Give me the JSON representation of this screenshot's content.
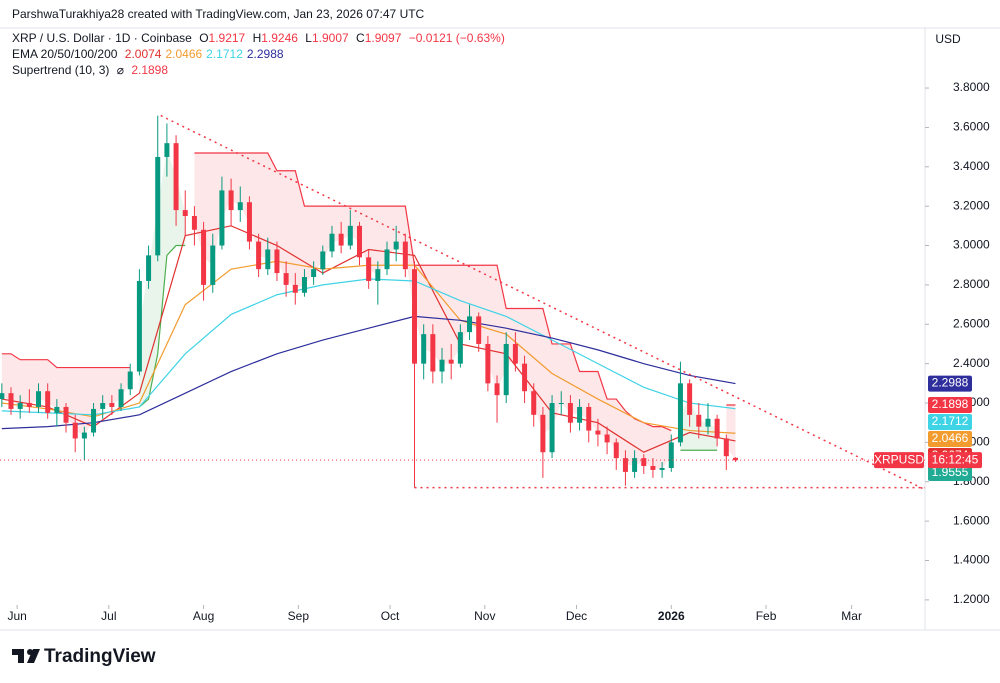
{
  "header": {
    "attribution": "ParshwaTurakhiya28 created with TradingView.com, Jan 23, 2026 07:47 UTC",
    "symbol": "XRP / U.S. Dollar · 1D · Coinbase",
    "ohlc_letters": [
      "O",
      "H",
      "L",
      "C"
    ],
    "change": "−0.0121 (−0.63%)"
  },
  "currency": "USD",
  "logo": "TradingView",
  "chart_data": {
    "type": "candlestick",
    "up_color": "#089981",
    "down_color": "#f23645",
    "xlim": [
      -5.6,
      297
    ],
    "ylim": [
      1.174,
      4.105
    ],
    "xticks": [
      {
        "value": 0,
        "label": "Jun"
      },
      {
        "value": 30,
        "label": "Jul"
      },
      {
        "value": 61,
        "label": "Aug"
      },
      {
        "value": 92,
        "label": "Sep"
      },
      {
        "value": 122,
        "label": "Oct"
      },
      {
        "value": 153,
        "label": "Nov"
      },
      {
        "value": 183,
        "label": "Dec"
      },
      {
        "value": 214,
        "label": "2026"
      },
      {
        "value": 245,
        "label": "Feb"
      },
      {
        "value": 273,
        "label": "Mar"
      }
    ],
    "yticks": [
      {
        "value": 1.2,
        "label": "1.2000"
      },
      {
        "value": 1.4,
        "label": "1.4000"
      },
      {
        "value": 1.6,
        "label": "1.6000"
      },
      {
        "value": 1.8,
        "label": "1.8000"
      },
      {
        "value": 2.0,
        "label": "2.0000"
      },
      {
        "value": 2.2,
        "label": "2.2000"
      },
      {
        "value": 2.4,
        "label": "2.4000"
      },
      {
        "value": 2.6,
        "label": "2.6000"
      },
      {
        "value": 2.8,
        "label": "2.8000"
      },
      {
        "value": 3.0,
        "label": "3.0000"
      },
      {
        "value": 3.2,
        "label": "3.2000"
      },
      {
        "value": 3.4,
        "label": "3.4000"
      },
      {
        "value": 3.6,
        "label": "3.6000"
      },
      {
        "value": 3.8,
        "label": "3.8000"
      }
    ],
    "x": [
      -5,
      -2,
      1,
      4,
      7,
      10,
      13,
      16,
      19,
      22,
      25,
      28,
      31,
      34,
      37,
      40,
      43,
      46,
      49,
      52,
      55,
      58,
      61,
      64,
      67,
      70,
      73,
      76,
      79,
      82,
      85,
      88,
      91,
      94,
      97,
      100,
      103,
      106,
      109,
      112,
      115,
      118,
      121,
      124,
      127,
      130,
      133,
      136,
      139,
      142,
      145,
      148,
      151,
      154,
      157,
      160,
      163,
      166,
      169,
      172,
      175,
      178,
      181,
      184,
      187,
      190,
      193,
      196,
      199,
      202,
      205,
      208,
      211,
      214,
      217,
      220,
      223,
      226,
      229,
      232,
      235
    ],
    "open": [
      2.22,
      2.25,
      2.17,
      2.2,
      2.18,
      2.26,
      2.15,
      2.18,
      2.1,
      2.02,
      2.05,
      2.17,
      2.2,
      2.18,
      2.27,
      2.36,
      2.82,
      2.95,
      3.45,
      3.52,
      3.18,
      3.15,
      3.08,
      2.8,
      3.0,
      3.28,
      3.18,
      3.22,
      3.02,
      2.88,
      2.98,
      2.86,
      2.8,
      2.76,
      2.84,
      2.88,
      2.97,
      3.06,
      3.0,
      3.1,
      2.94,
      2.82,
      2.88,
      2.98,
      3.02,
      2.88,
      2.4,
      2.55,
      2.36,
      2.42,
      2.4,
      2.56,
      2.64,
      2.5,
      2.3,
      2.24,
      2.5,
      2.4,
      2.26,
      2.14,
      1.95,
      2.2,
      2.2,
      2.1,
      2.18,
      2.06,
      2.04,
      2.0,
      1.92,
      1.85,
      1.92,
      1.88,
      1.86,
      1.87,
      2.0,
      2.3,
      2.14,
      2.08,
      2.12,
      2.02,
      1.9217
    ],
    "high": [
      2.3,
      2.28,
      2.24,
      2.27,
      2.3,
      2.3,
      2.22,
      2.2,
      2.14,
      2.08,
      2.2,
      2.24,
      2.24,
      2.3,
      2.4,
      2.88,
      3.0,
      3.66,
      3.62,
      3.56,
      3.28,
      3.2,
      3.12,
      3.06,
      3.35,
      3.34,
      3.3,
      3.25,
      3.06,
      3.04,
      3.02,
      2.92,
      2.86,
      2.88,
      2.92,
      3.0,
      3.1,
      3.12,
      3.18,
      3.12,
      2.98,
      2.92,
      3.02,
      3.1,
      3.06,
      2.92,
      2.6,
      2.6,
      2.48,
      2.5,
      2.6,
      2.7,
      2.66,
      2.54,
      2.34,
      2.56,
      2.56,
      2.44,
      2.3,
      2.18,
      2.24,
      2.26,
      2.24,
      2.22,
      2.2,
      2.12,
      2.08,
      2.02,
      1.96,
      1.96,
      1.94,
      1.92,
      1.9,
      2.04,
      2.41,
      2.32,
      2.2,
      2.2,
      2.14,
      2.04,
      1.9246
    ],
    "low": [
      2.18,
      2.14,
      2.12,
      2.15,
      2.15,
      2.12,
      2.08,
      2.05,
      1.95,
      1.91,
      2.03,
      2.12,
      2.14,
      2.16,
      2.24,
      2.34,
      2.78,
      2.92,
      3.35,
      3.1,
      3.05,
      3.0,
      2.72,
      2.76,
      2.98,
      3.1,
      3.12,
      2.98,
      2.84,
      2.85,
      2.82,
      2.74,
      2.7,
      2.74,
      2.8,
      2.85,
      2.94,
      2.96,
      2.98,
      2.9,
      2.78,
      2.7,
      2.85,
      2.92,
      2.84,
      1.77,
      2.32,
      2.3,
      2.3,
      2.32,
      2.38,
      2.52,
      2.46,
      2.26,
      2.1,
      2.2,
      2.36,
      2.2,
      2.08,
      1.82,
      1.92,
      2.14,
      2.05,
      2.06,
      2.0,
      1.98,
      1.94,
      1.86,
      1.78,
      1.82,
      1.84,
      1.82,
      1.82,
      1.85,
      1.98,
      2.08,
      2.02,
      2.04,
      1.98,
      1.86,
      1.9007
    ],
    "close": [
      2.25,
      2.17,
      2.2,
      2.18,
      2.26,
      2.15,
      2.18,
      2.1,
      2.02,
      2.05,
      2.17,
      2.2,
      2.18,
      2.27,
      2.36,
      2.82,
      2.95,
      3.45,
      3.52,
      3.18,
      3.15,
      3.08,
      2.8,
      3.0,
      3.28,
      3.18,
      3.22,
      3.02,
      2.88,
      2.98,
      2.86,
      2.8,
      2.76,
      2.84,
      2.88,
      2.97,
      3.06,
      3.0,
      3.1,
      2.94,
      2.82,
      2.88,
      2.98,
      3.02,
      2.88,
      2.4,
      2.55,
      2.36,
      2.42,
      2.4,
      2.56,
      2.64,
      2.5,
      2.3,
      2.24,
      2.5,
      2.4,
      2.26,
      2.14,
      1.95,
      2.2,
      2.2,
      2.1,
      2.18,
      2.06,
      2.04,
      2.0,
      1.92,
      1.85,
      1.92,
      1.88,
      1.86,
      1.87,
      2.0,
      2.3,
      2.14,
      2.08,
      2.12,
      2.02,
      1.93,
      1.9097
    ],
    "ema": {
      "label": "EMA 20/50/100/200",
      "lines": [
        {
          "color": "#e0312f",
          "x": [
            -5,
            10,
            25,
            40,
            55,
            70,
            85,
            100,
            115,
            130,
            145,
            160,
            175,
            190,
            205,
            220,
            235
          ],
          "values": [
            2.22,
            2.18,
            2.08,
            2.25,
            3.05,
            3.1,
            3.0,
            2.86,
            2.98,
            2.95,
            2.5,
            2.45,
            2.15,
            2.1,
            1.95,
            2.05,
            2.0074
          ],
          "last": 2.0074
        },
        {
          "color": "#f29b2e",
          "x": [
            -5,
            10,
            25,
            40,
            55,
            70,
            85,
            100,
            115,
            130,
            145,
            160,
            175,
            190,
            205,
            220,
            235
          ],
          "values": [
            2.2,
            2.17,
            2.13,
            2.2,
            2.7,
            2.88,
            2.92,
            2.88,
            2.9,
            2.9,
            2.62,
            2.55,
            2.35,
            2.22,
            2.1,
            2.06,
            2.0466
          ],
          "last": 2.0466
        },
        {
          "color": "#3fd3e6",
          "x": [
            -5,
            10,
            25,
            40,
            55,
            70,
            85,
            100,
            115,
            130,
            145,
            160,
            175,
            190,
            205,
            220,
            235
          ],
          "values": [
            2.16,
            2.15,
            2.14,
            2.18,
            2.45,
            2.65,
            2.75,
            2.8,
            2.83,
            2.82,
            2.72,
            2.64,
            2.52,
            2.4,
            2.28,
            2.2,
            2.1712
          ],
          "last": 2.1712
        },
        {
          "color": "#2e2e9c",
          "x": [
            -5,
            10,
            25,
            40,
            55,
            70,
            85,
            100,
            115,
            130,
            145,
            160,
            175,
            190,
            205,
            220,
            235
          ],
          "values": [
            2.07,
            2.08,
            2.1,
            2.14,
            2.25,
            2.36,
            2.45,
            2.52,
            2.58,
            2.64,
            2.62,
            2.58,
            2.53,
            2.47,
            2.4,
            2.34,
            2.2988
          ],
          "last": 2.2988
        }
      ]
    },
    "supertrend": {
      "label": "Supertrend (10, 3)",
      "symbol": "⌀",
      "last": 2.1898,
      "up_color": "#4caf50",
      "down_color": "#f23645",
      "down": [
        2.45,
        2.45,
        2.42,
        2.42,
        2.42,
        2.42,
        2.38,
        2.38,
        2.38,
        2.38,
        2.38,
        2.38,
        2.38,
        2.38,
        2.38,
        null,
        null,
        null,
        null,
        null,
        null,
        3.47,
        3.47,
        3.47,
        3.47,
        3.47,
        3.47,
        3.47,
        3.47,
        3.47,
        3.38,
        3.38,
        3.38,
        3.2,
        3.2,
        3.2,
        3.2,
        3.2,
        3.2,
        3.2,
        3.2,
        3.2,
        3.2,
        3.2,
        3.2,
        2.9,
        2.9,
        2.9,
        2.9,
        2.9,
        2.9,
        2.9,
        2.9,
        2.9,
        2.9,
        2.68,
        2.68,
        2.68,
        2.68,
        2.68,
        2.5,
        2.5,
        2.5,
        2.36,
        2.36,
        2.36,
        2.22,
        2.22,
        2.16,
        2.12,
        2.1,
        2.08,
        2.08,
        2.06,
        null,
        null,
        null,
        null,
        null,
        2.19,
        2.1898
      ],
      "up": [
        null,
        null,
        null,
        null,
        null,
        null,
        null,
        null,
        null,
        null,
        null,
        null,
        null,
        null,
        null,
        2.18,
        2.22,
        2.45,
        2.95,
        3.0,
        3.0,
        null,
        null,
        null,
        null,
        null,
        null,
        null,
        null,
        null,
        null,
        null,
        null,
        null,
        null,
        null,
        null,
        null,
        null,
        null,
        null,
        null,
        null,
        null,
        null,
        null,
        null,
        null,
        null,
        null,
        null,
        null,
        null,
        null,
        null,
        null,
        null,
        null,
        null,
        null,
        null,
        null,
        null,
        null,
        null,
        null,
        null,
        null,
        null,
        null,
        null,
        null,
        null,
        null,
        1.96,
        1.96,
        1.96,
        1.96,
        1.96,
        null,
        null
      ]
    },
    "extra_labels": [
      {
        "value": 1.9555,
        "color": "#22ab94"
      }
    ],
    "price_tag": {
      "symbol": "XRPUSD",
      "countdown": "16:12:45",
      "color": "#f23645"
    },
    "trendlines": [
      {
        "x": [
          47,
          297
        ],
        "y": [
          3.66,
          1.76
        ]
      },
      {
        "x": [
          130,
          297
        ],
        "y": [
          1.77,
          1.77
        ]
      }
    ]
  }
}
